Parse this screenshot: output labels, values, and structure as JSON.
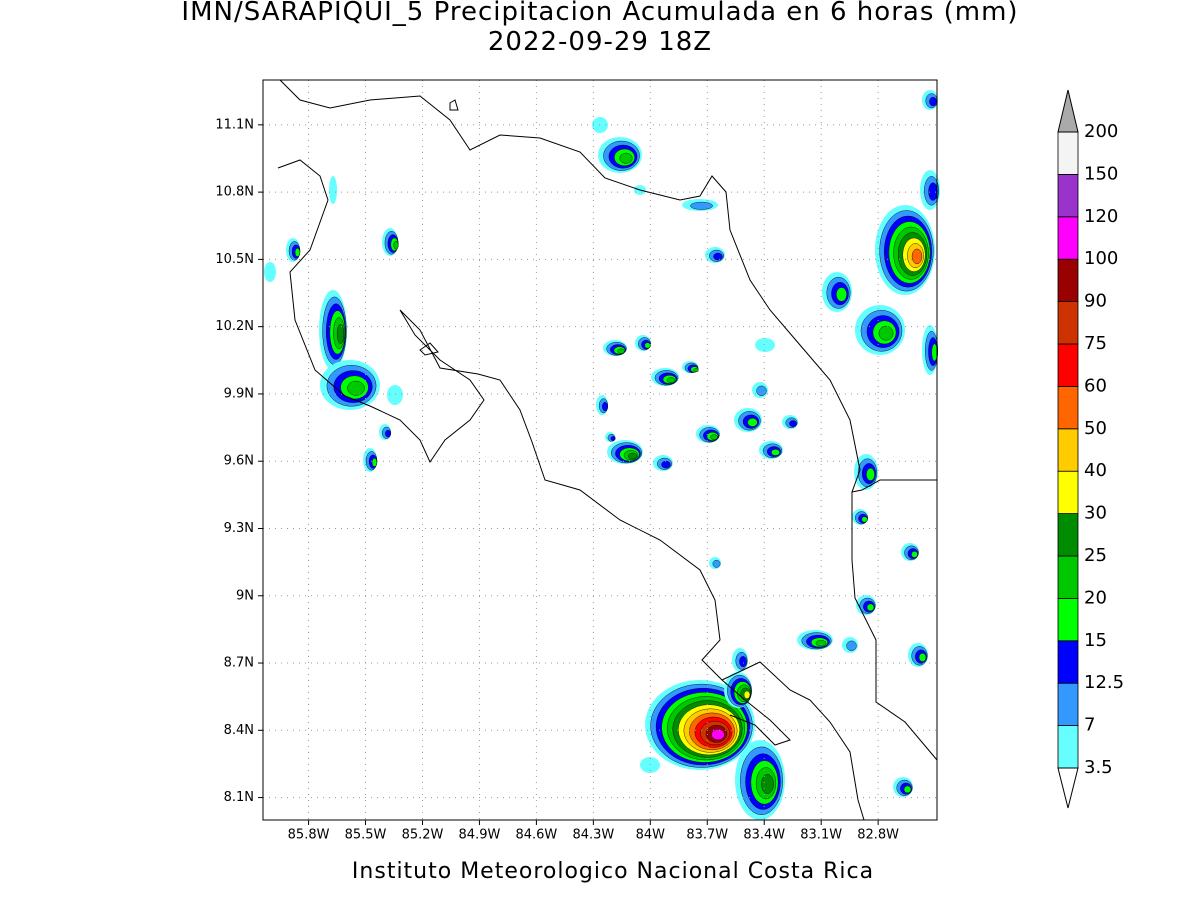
{
  "map": {
    "title": "IMN/SARAPIQUI_5 Precipitacion Acumulada en 6 horas (mm)",
    "subtitle": "2022-09-29 18Z",
    "footer": "Instituto Meteorologico Nacional Costa Rica",
    "lonlim": [
      -86.04,
      -82.49
    ],
    "latlim": [
      8.0,
      11.3
    ],
    "lat_ticks": [
      {
        "value": 11.1,
        "label": "11.1N"
      },
      {
        "value": 10.8,
        "label": "10.8N"
      },
      {
        "value": 10.5,
        "label": "10.5N"
      },
      {
        "value": 10.2,
        "label": "10.2N"
      },
      {
        "value": 9.9,
        "label": "9.9N"
      },
      {
        "value": 9.6,
        "label": "9.6N"
      },
      {
        "value": 9.3,
        "label": "9.3N"
      },
      {
        "value": 9,
        "label": "9N"
      },
      {
        "value": 8.7,
        "label": "8.7N"
      },
      {
        "value": 8.4,
        "label": "8.4N"
      },
      {
        "value": 8.1,
        "label": "8.1N"
      }
    ],
    "lon_ticks": [
      {
        "value": -85.8,
        "label": "85.8W"
      },
      {
        "value": -85.5,
        "label": "85.5W"
      },
      {
        "value": -85.2,
        "label": "85.2W"
      },
      {
        "value": -84.9,
        "label": "84.9W"
      },
      {
        "value": -84.6,
        "label": "84.6W"
      },
      {
        "value": -84.3,
        "label": "84.3W"
      },
      {
        "value": -84,
        "label": "84W"
      },
      {
        "value": -83.7,
        "label": "83.7W"
      },
      {
        "value": -83.4,
        "label": "83.4W"
      },
      {
        "value": -83.1,
        "label": "83.1W"
      },
      {
        "value": -82.8,
        "label": "82.8W"
      }
    ],
    "grid": true,
    "colorbar": {
      "levels": [
        3.5,
        7,
        12.5,
        15,
        20,
        25,
        30,
        40,
        50,
        60,
        75,
        90,
        100,
        120,
        150,
        200
      ],
      "colors": [
        "#66ffff",
        "#3399ff",
        "#0000ff",
        "#00ff00",
        "#00c800",
        "#008c00",
        "#ffff00",
        "#ffcc00",
        "#ff6600",
        "#ff0000",
        "#cc3300",
        "#990000",
        "#ff00ff",
        "#9933cc",
        "#f4f4f4"
      ],
      "under_color": "#ffffff",
      "over_color": "#aaaaaa"
    }
  }
}
